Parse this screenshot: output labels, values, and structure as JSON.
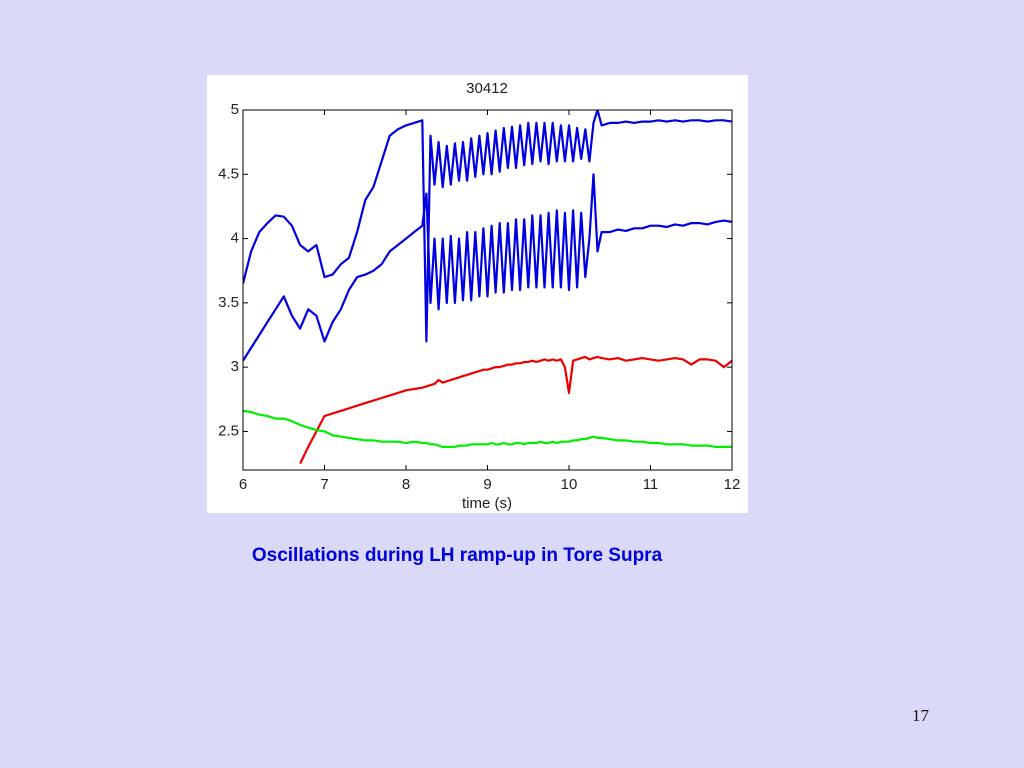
{
  "chart_data": {
    "type": "line",
    "title": "30412",
    "xlabel": "time (s)",
    "x": [
      6,
      6.1,
      6.2,
      6.3,
      6.4,
      6.5,
      6.6,
      6.7,
      6.8,
      6.9,
      7,
      7.1,
      7.2,
      7.3,
      7.4,
      7.5,
      7.6,
      7.7,
      7.8,
      7.9,
      8,
      8.1,
      8.2,
      8.25,
      8.3,
      8.35,
      8.4,
      8.45,
      8.5,
      8.55,
      8.6,
      8.65,
      8.7,
      8.75,
      8.8,
      8.85,
      8.9,
      8.95,
      9,
      9.05,
      9.1,
      9.15,
      9.2,
      9.25,
      9.3,
      9.35,
      9.4,
      9.45,
      9.5,
      9.55,
      9.6,
      9.65,
      9.7,
      9.75,
      9.8,
      9.85,
      9.9,
      9.95,
      10,
      10.05,
      10.1,
      10.15,
      10.2,
      10.25,
      10.3,
      10.35,
      10.4,
      10.5,
      10.6,
      10.7,
      10.8,
      10.9,
      11,
      11.1,
      11.2,
      11.3,
      11.4,
      11.5,
      11.6,
      11.7,
      11.8,
      11.9,
      12
    ],
    "series": [
      {
        "color": "#0000e0",
        "values": [
          3.65,
          3.9,
          4.05,
          4.12,
          4.18,
          4.17,
          4.1,
          3.95,
          3.9,
          3.95,
          3.7,
          3.72,
          3.8,
          3.85,
          4.05,
          4.3,
          4.4,
          4.6,
          4.8,
          4.85,
          4.88,
          4.9,
          4.92,
          3.2,
          4.8,
          4.42,
          4.75,
          4.4,
          4.72,
          4.42,
          4.74,
          4.45,
          4.75,
          4.45,
          4.78,
          4.48,
          4.8,
          4.5,
          4.82,
          4.5,
          4.84,
          4.52,
          4.86,
          4.55,
          4.87,
          4.55,
          4.88,
          4.57,
          4.9,
          4.58,
          4.9,
          4.6,
          4.9,
          4.58,
          4.9,
          4.6,
          4.88,
          4.6,
          4.88,
          4.6,
          4.86,
          4.62,
          4.85,
          4.6,
          4.9,
          5.0,
          4.88,
          4.9,
          4.9,
          4.91,
          4.9,
          4.91,
          4.91,
          4.92,
          4.91,
          4.92,
          4.91,
          4.92,
          4.92,
          4.91,
          4.92,
          4.92,
          4.91
        ]
      },
      {
        "color": "#0000e0",
        "values": [
          3.05,
          3.15,
          3.25,
          3.35,
          3.45,
          3.55,
          3.4,
          3.3,
          3.45,
          3.4,
          3.2,
          3.35,
          3.45,
          3.6,
          3.7,
          3.72,
          3.75,
          3.8,
          3.9,
          3.95,
          4.0,
          4.05,
          4.1,
          4.35,
          3.5,
          4.0,
          3.45,
          4.0,
          3.5,
          4.02,
          3.5,
          4.0,
          3.52,
          4.05,
          3.52,
          4.05,
          3.55,
          4.08,
          3.55,
          4.1,
          3.58,
          4.12,
          3.58,
          4.12,
          3.6,
          4.15,
          3.6,
          4.15,
          3.62,
          4.18,
          3.62,
          4.18,
          3.62,
          4.2,
          3.62,
          4.22,
          3.62,
          4.2,
          3.6,
          4.22,
          3.62,
          4.2,
          3.7,
          4.0,
          4.5,
          3.9,
          4.05,
          4.05,
          4.07,
          4.06,
          4.08,
          4.08,
          4.1,
          4.1,
          4.09,
          4.11,
          4.1,
          4.12,
          4.12,
          4.11,
          4.13,
          4.14,
          4.13
        ]
      },
      {
        "color": "#ee0000",
        "values": [
          null,
          null,
          null,
          null,
          null,
          null,
          null,
          2.25,
          2.38,
          2.5,
          2.62,
          2.64,
          2.66,
          2.68,
          2.7,
          2.72,
          2.74,
          2.76,
          2.78,
          2.8,
          2.82,
          2.83,
          2.84,
          2.85,
          2.86,
          2.87,
          2.9,
          2.88,
          2.89,
          2.9,
          2.91,
          2.92,
          2.93,
          2.94,
          2.95,
          2.96,
          2.97,
          2.98,
          2.98,
          2.99,
          3.0,
          3.0,
          3.01,
          3.02,
          3.02,
          3.03,
          3.03,
          3.04,
          3.04,
          3.05,
          3.04,
          3.05,
          3.06,
          3.05,
          3.06,
          3.05,
          3.06,
          3.0,
          2.8,
          3.05,
          3.06,
          3.07,
          3.08,
          3.06,
          3.07,
          3.08,
          3.07,
          3.06,
          3.07,
          3.05,
          3.06,
          3.07,
          3.06,
          3.05,
          3.06,
          3.07,
          3.06,
          3.02,
          3.06,
          3.06,
          3.05,
          3.0,
          3.05
        ]
      },
      {
        "color": "#00ee00",
        "values": [
          2.66,
          2.65,
          2.63,
          2.62,
          2.6,
          2.6,
          2.58,
          2.55,
          2.53,
          2.51,
          2.5,
          2.47,
          2.46,
          2.45,
          2.44,
          2.43,
          2.43,
          2.42,
          2.42,
          2.42,
          2.41,
          2.42,
          2.41,
          2.41,
          2.4,
          2.4,
          2.39,
          2.38,
          2.38,
          2.38,
          2.38,
          2.39,
          2.39,
          2.39,
          2.4,
          2.4,
          2.4,
          2.4,
          2.4,
          2.41,
          2.4,
          2.4,
          2.41,
          2.4,
          2.4,
          2.41,
          2.41,
          2.4,
          2.41,
          2.41,
          2.41,
          2.42,
          2.41,
          2.41,
          2.42,
          2.41,
          2.42,
          2.42,
          2.42,
          2.43,
          2.43,
          2.44,
          2.44,
          2.45,
          2.46,
          2.45,
          2.45,
          2.44,
          2.43,
          2.43,
          2.42,
          2.42,
          2.41,
          2.41,
          2.4,
          2.4,
          2.4,
          2.39,
          2.39,
          2.39,
          2.38,
          2.38,
          2.38
        ]
      }
    ],
    "xlim": [
      6,
      12
    ],
    "xticks": [
      6,
      7,
      8,
      9,
      10,
      11,
      12
    ],
    "ylim": [
      2.2,
      5
    ],
    "yticks": [
      2.5,
      3,
      3.5,
      4,
      4.5,
      5
    ]
  },
  "caption": "Oscillations during LH ramp-up in Tore Supra",
  "page_number": "17"
}
